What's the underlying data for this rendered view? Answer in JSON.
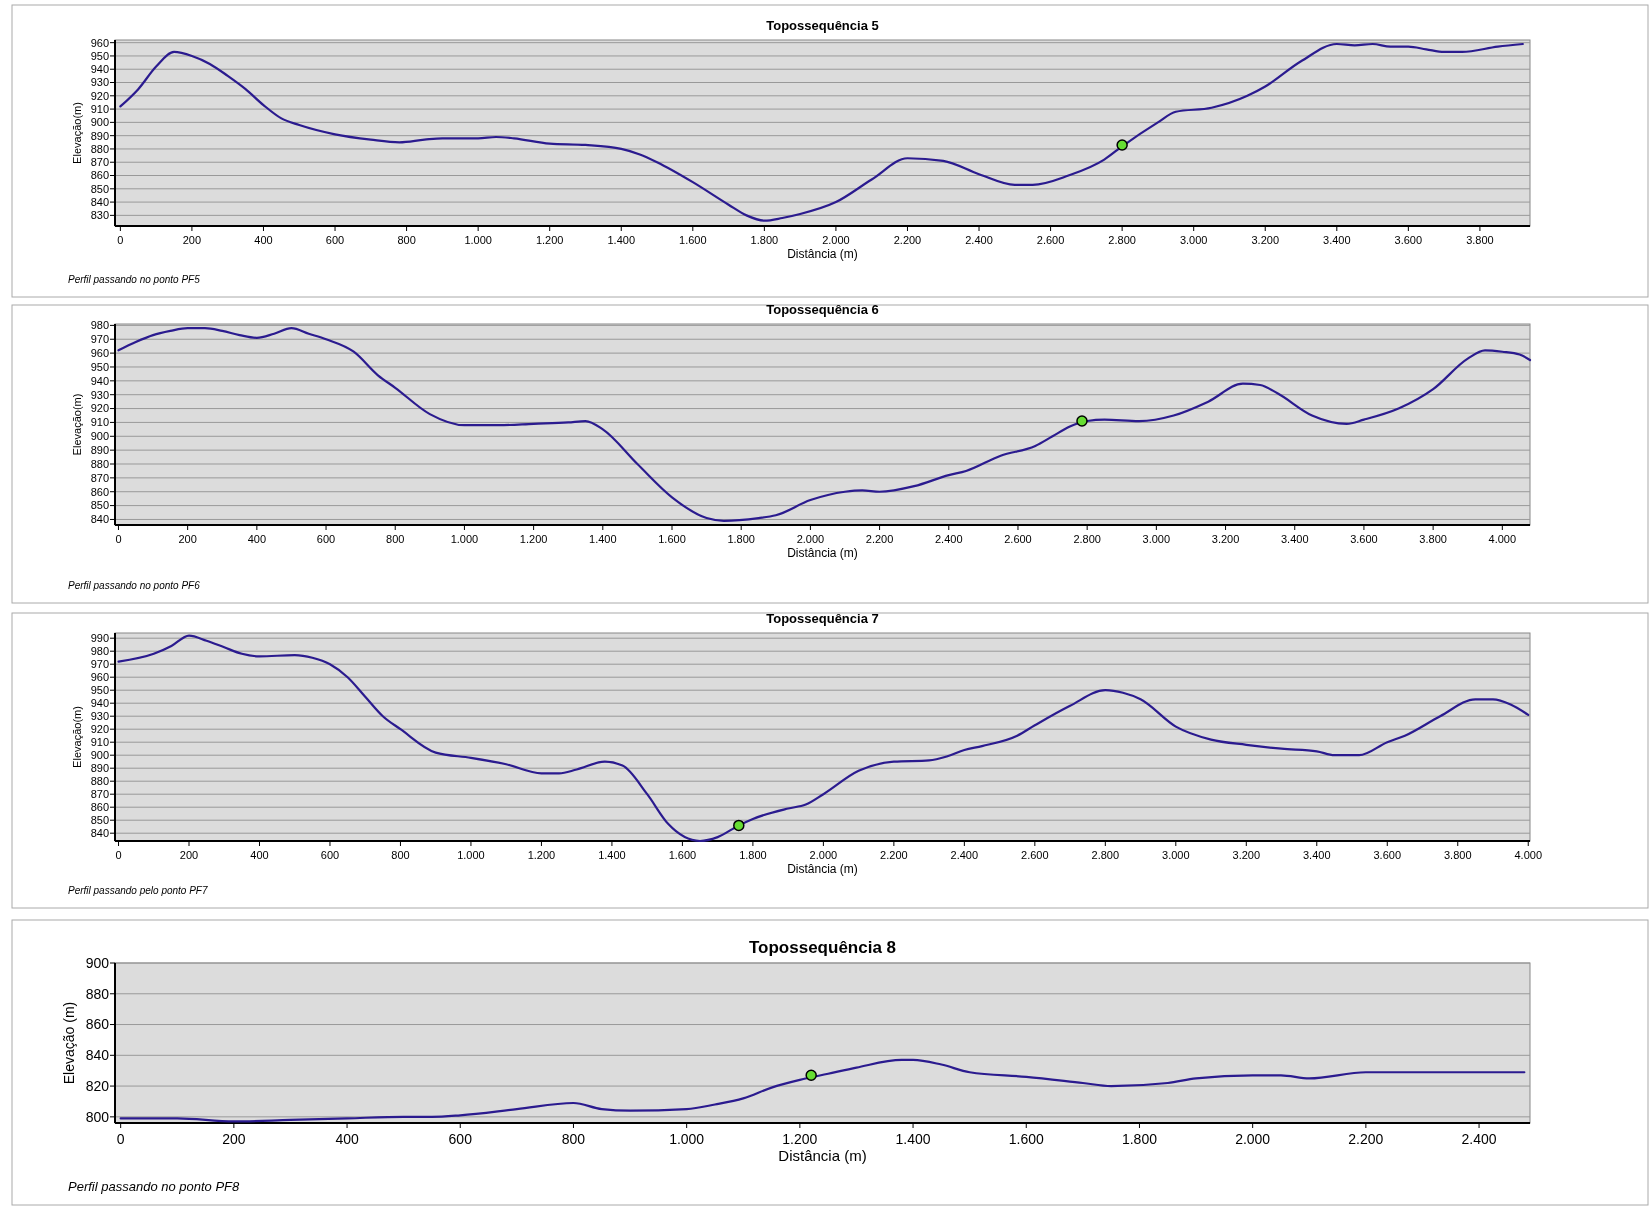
{
  "chart_data": [
    {
      "type": "line",
      "title": "Topossequência 5",
      "xlabel": "Distância (m)",
      "ylabel": "Elevação(m)",
      "annotations": [
        "Perfil passando no ponto PF5"
      ],
      "grid": "y",
      "xlim": [
        -15,
        3940
      ],
      "ylim": [
        822,
        962
      ],
      "xticks": [
        0,
        200,
        400,
        600,
        800,
        {
          "value": 1000,
          "label": "1.000"
        },
        {
          "value": 1200,
          "label": "1.200"
        },
        {
          "value": 1400,
          "label": "1.400"
        },
        {
          "value": 1600,
          "label": "1.600"
        },
        {
          "value": 1800,
          "label": "1.800"
        },
        {
          "value": 2000,
          "label": "2.000"
        },
        {
          "value": 2200,
          "label": "2.200"
        },
        {
          "value": 2400,
          "label": "2.400"
        },
        {
          "value": 2600,
          "label": "2.600"
        },
        {
          "value": 2800,
          "label": "2.800"
        },
        {
          "value": 3000,
          "label": "3.000"
        },
        {
          "value": 3200,
          "label": "3.200"
        },
        {
          "value": 3400,
          "label": "3.400"
        },
        {
          "value": 3600,
          "label": "3.600"
        },
        {
          "value": 3800,
          "label": "3.800"
        }
      ],
      "yticks": [
        830,
        840,
        850,
        860,
        870,
        880,
        890,
        900,
        910,
        920,
        930,
        940,
        950,
        960
      ],
      "series": [
        {
          "color": "#2b1b8f",
          "x": [
            0,
            50,
            100,
            150,
            200,
            250,
            300,
            350,
            400,
            450,
            500,
            600,
            700,
            780,
            850,
            900,
            1000,
            1050,
            1100,
            1200,
            1300,
            1400,
            1450,
            1500,
            1600,
            1700,
            1750,
            1800,
            1850,
            1900,
            2000,
            2100,
            2200,
            2300,
            2400,
            2500,
            2550,
            2650,
            2750,
            2800,
            2900,
            2950,
            3050,
            3150,
            3200,
            3300,
            3400,
            3450,
            3500,
            3550,
            3600,
            3650,
            3700,
            3750,
            3850,
            3920
          ],
          "values": [
            912,
            925,
            942,
            953,
            950,
            944,
            935,
            925,
            913,
            903,
            898,
            891,
            887,
            885,
            887,
            888,
            888,
            889,
            888,
            884,
            883,
            880,
            876,
            870,
            855,
            838,
            830,
            826,
            828,
            831,
            840,
            857,
            873,
            871,
            861,
            853,
            853,
            860,
            872,
            882,
            900,
            908,
            911,
            920,
            927,
            946,
            959,
            958,
            959,
            957,
            957,
            955,
            953,
            953,
            957,
            959
          ]
        },
        {
          "type": "scatter",
          "marker": "circle",
          "color": "#66dd33",
          "x": [
            2800
          ],
          "values": [
            883
          ]
        }
      ]
    },
    {
      "type": "line",
      "title": "Topossequência 6",
      "xlabel": "Distância (m)",
      "ylabel": "Elevação(m)",
      "annotations": [
        "Perfil passando no ponto PF6"
      ],
      "grid": "y",
      "xlim": [
        -10,
        4080
      ],
      "ylim": [
        836,
        981
      ],
      "xticks": [
        0,
        200,
        400,
        600,
        800,
        {
          "value": 1000,
          "label": "1.000"
        },
        {
          "value": 1200,
          "label": "1.200"
        },
        {
          "value": 1400,
          "label": "1.400"
        },
        {
          "value": 1600,
          "label": "1.600"
        },
        {
          "value": 1800,
          "label": "1.800"
        },
        {
          "value": 2000,
          "label": "2.000"
        },
        {
          "value": 2200,
          "label": "2.200"
        },
        {
          "value": 2400,
          "label": "2.400"
        },
        {
          "value": 2600,
          "label": "2.600"
        },
        {
          "value": 2800,
          "label": "2.800"
        },
        {
          "value": 3000,
          "label": "3.000"
        },
        {
          "value": 3200,
          "label": "3.200"
        },
        {
          "value": 3400,
          "label": "3.400"
        },
        {
          "value": 3600,
          "label": "3.600"
        },
        {
          "value": 3800,
          "label": "3.800"
        },
        {
          "value": 4000,
          "label": "4.000"
        }
      ],
      "yticks": [
        840,
        850,
        860,
        870,
        880,
        890,
        900,
        910,
        920,
        930,
        940,
        950,
        960,
        970,
        980
      ],
      "series": [
        {
          "color": "#2b1b8f",
          "x": [
            0,
            50,
            100,
            150,
            200,
            250,
            300,
            350,
            400,
            450,
            500,
            550,
            600,
            680,
            750,
            800,
            900,
            1000,
            1100,
            1200,
            1300,
            1350,
            1400,
            1500,
            1600,
            1700,
            1750,
            1850,
            1900,
            2000,
            2100,
            2150,
            2200,
            2300,
            2400,
            2450,
            2550,
            2650,
            2700,
            2750,
            2800,
            2850,
            2950,
            3050,
            3150,
            3250,
            3300,
            3350,
            3450,
            3550,
            3600,
            3700,
            3800,
            3900,
            3950,
            4000,
            4050,
            4080
          ],
          "values": [
            962,
            968,
            973,
            976,
            978,
            978,
            976,
            973,
            971,
            974,
            978,
            974,
            970,
            961,
            944,
            935,
            916,
            908,
            908,
            909,
            910,
            911,
            905,
            880,
            856,
            841,
            839,
            841,
            843,
            854,
            860,
            861,
            860,
            864,
            872,
            875,
            886,
            893,
            900,
            907,
            911,
            912,
            911,
            915,
            925,
            938,
            937,
            931,
            915,
            909,
            912,
            920,
            934,
            956,
            962,
            961,
            959,
            955
          ]
        },
        {
          "type": "scatter",
          "marker": "circle",
          "color": "#66dd33",
          "x": [
            2785
          ],
          "values": [
            911
          ]
        }
      ]
    },
    {
      "type": "line",
      "title": "Topossequência 7",
      "xlabel": "Distância (m)",
      "ylabel": "Elevação(m)",
      "annotations": [
        "Perfil passando pelo ponto PF7"
      ],
      "grid": "y",
      "xlim": [
        -10,
        4005
      ],
      "ylim": [
        834,
        994
      ],
      "xticks": [
        0,
        200,
        400,
        600,
        800,
        {
          "value": 1000,
          "label": "1.000"
        },
        {
          "value": 1200,
          "label": "1.200"
        },
        {
          "value": 1400,
          "label": "1.400"
        },
        {
          "value": 1600,
          "label": "1.600"
        },
        {
          "value": 1800,
          "label": "1.800"
        },
        {
          "value": 2000,
          "label": "2.000"
        },
        {
          "value": 2200,
          "label": "2.200"
        },
        {
          "value": 2400,
          "label": "2.400"
        },
        {
          "value": 2600,
          "label": "2.600"
        },
        {
          "value": 2800,
          "label": "2.800"
        },
        {
          "value": 3000,
          "label": "3.000"
        },
        {
          "value": 3200,
          "label": "3.200"
        },
        {
          "value": 3400,
          "label": "3.400"
        },
        {
          "value": 3600,
          "label": "3.600"
        },
        {
          "value": 3800,
          "label": "3.800"
        },
        {
          "value": 4000,
          "label": "4.000"
        }
      ],
      "yticks": [
        840,
        850,
        860,
        870,
        880,
        890,
        900,
        910,
        920,
        930,
        940,
        950,
        960,
        970,
        980,
        990
      ],
      "series": [
        {
          "color": "#2b1b8f",
          "x": [
            0,
            100,
            150,
            200,
            250,
            300,
            350,
            400,
            500,
            550,
            600,
            650,
            700,
            750,
            800,
            900,
            1000,
            1100,
            1200,
            1250,
            1300,
            1380,
            1430,
            1500,
            1560,
            1650,
            1700,
            1760,
            1800,
            1900,
            1950,
            2000,
            2100,
            2200,
            2300,
            2350,
            2400,
            2450,
            2550,
            2600,
            2700,
            2800,
            2850,
            2900,
            3000,
            3100,
            3200,
            3300,
            3400,
            3450,
            3520,
            3600,
            3650,
            3750,
            3850,
            3900,
            3950,
            4000
          ],
          "values": [
            972,
            978,
            984,
            992,
            988,
            983,
            978,
            976,
            977,
            975,
            970,
            960,
            945,
            930,
            920,
            902,
            898,
            893,
            886,
            886,
            889,
            895,
            892,
            870,
            847,
            834,
            837,
            846,
            851,
            859,
            862,
            870,
            888,
            895,
            896,
            899,
            904,
            907,
            915,
            923,
            938,
            950,
            948,
            943,
            922,
            912,
            908,
            905,
            903,
            900,
            900,
            910,
            915,
            930,
            943,
            943,
            939,
            931
          ]
        },
        {
          "type": "scatter",
          "marker": "circle",
          "color": "#66dd33",
          "x": [
            1760
          ],
          "values": [
            846
          ]
        }
      ]
    },
    {
      "type": "line",
      "title": "Topossequência 8",
      "xlabel": "Distância (m)",
      "ylabel": "Elevação (m)",
      "annotations": [
        "Perfil passando no ponto PF8"
      ],
      "grid": "y",
      "xlim": [
        -10,
        2490
      ],
      "ylim": [
        796,
        900
      ],
      "xticks": [
        0,
        200,
        400,
        600,
        800,
        {
          "value": 1000,
          "label": "1.000"
        },
        {
          "value": 1200,
          "label": "1.200"
        },
        {
          "value": 1400,
          "label": "1.400"
        },
        {
          "value": 1600,
          "label": "1.600"
        },
        {
          "value": 1800,
          "label": "1.800"
        },
        {
          "value": 2000,
          "label": "2.000"
        },
        {
          "value": 2200,
          "label": "2.200"
        },
        {
          "value": 2400,
          "label": "2.400"
        }
      ],
      "yticks": [
        800,
        820,
        840,
        860,
        880,
        900
      ],
      "series": [
        {
          "color": "#2b1b8f",
          "x": [
            0,
            100,
            200,
            300,
            400,
            500,
            550,
            600,
            700,
            800,
            850,
            900,
            1000,
            1050,
            1100,
            1150,
            1200,
            1250,
            1300,
            1380,
            1400,
            1450,
            1500,
            1600,
            1700,
            1750,
            1850,
            1900,
            2000,
            2050,
            2100,
            2200,
            2300,
            2350,
            2400,
            2480
          ],
          "values": [
            799,
            799,
            797,
            798,
            799,
            800,
            800,
            801,
            805,
            809,
            805,
            804,
            805,
            808,
            812,
            819,
            824,
            828,
            832,
            837,
            837,
            834,
            829,
            826,
            822,
            820,
            822,
            825,
            827,
            827,
            825,
            829,
            829,
            829,
            829,
            829
          ]
        },
        {
          "type": "scatter",
          "marker": "circle",
          "color": "#66dd33",
          "x": [
            1220
          ],
          "values": [
            827
          ]
        }
      ]
    }
  ]
}
